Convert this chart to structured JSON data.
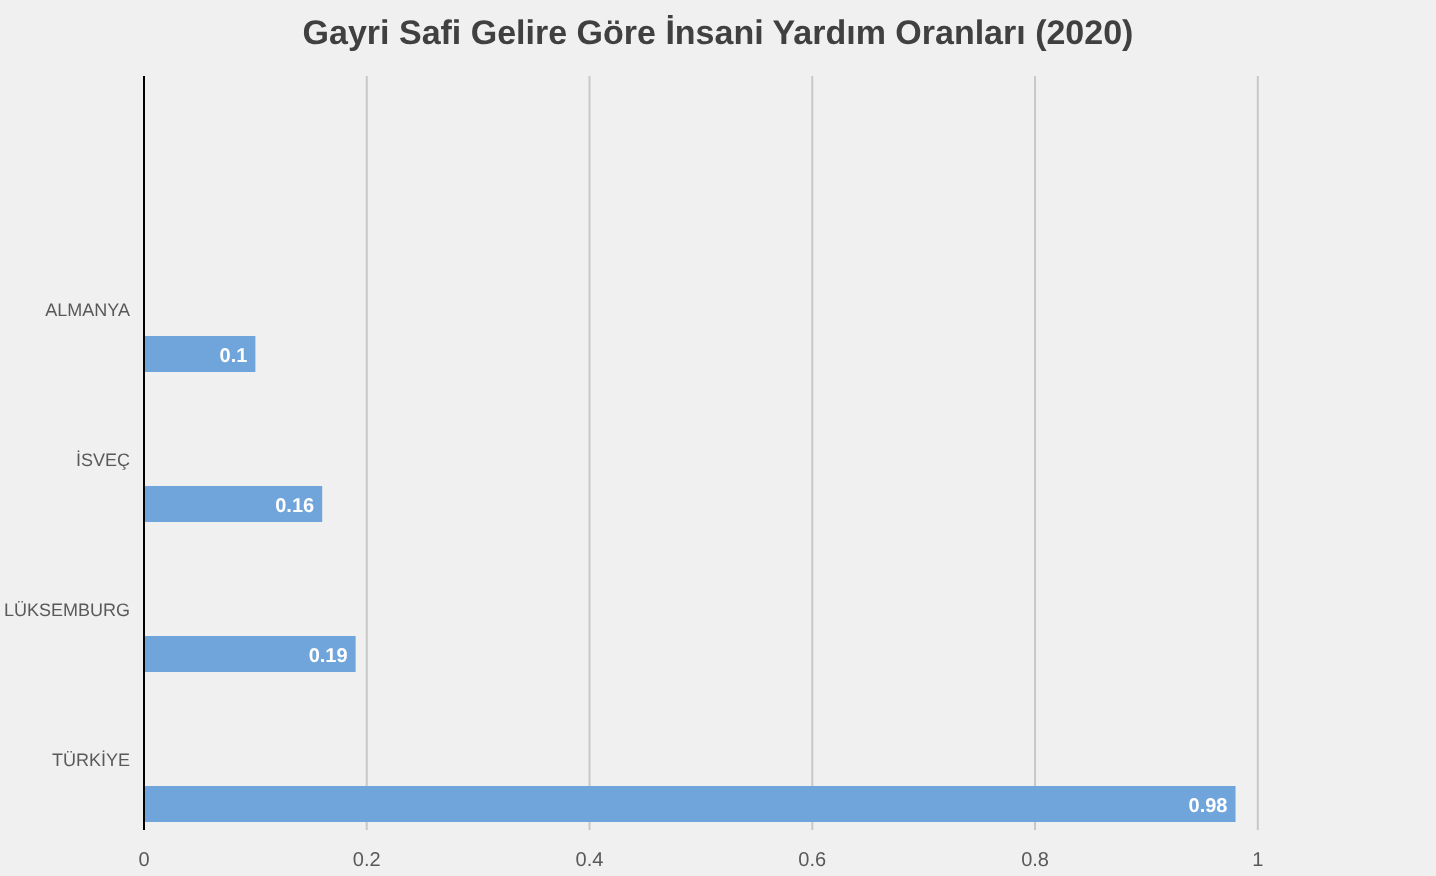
{
  "chart_data": {
    "type": "bar",
    "orientation": "horizontal",
    "title": "Gayri Safi Gelire Göre İnsani Yardım Oranları (2020)",
    "categories": [
      "ALMANYA",
      "İSVEÇ",
      "LÜKSEMBURG",
      "TÜRKİYE"
    ],
    "values": [
      0.1,
      0.16,
      0.19,
      0.98
    ],
    "color": "#6fa5da",
    "data_labels": true,
    "xlim": [
      0,
      1.16
    ],
    "xticks": [
      0,
      0.2,
      0.4,
      0.6,
      0.8,
      1
    ],
    "grid": "x"
  }
}
